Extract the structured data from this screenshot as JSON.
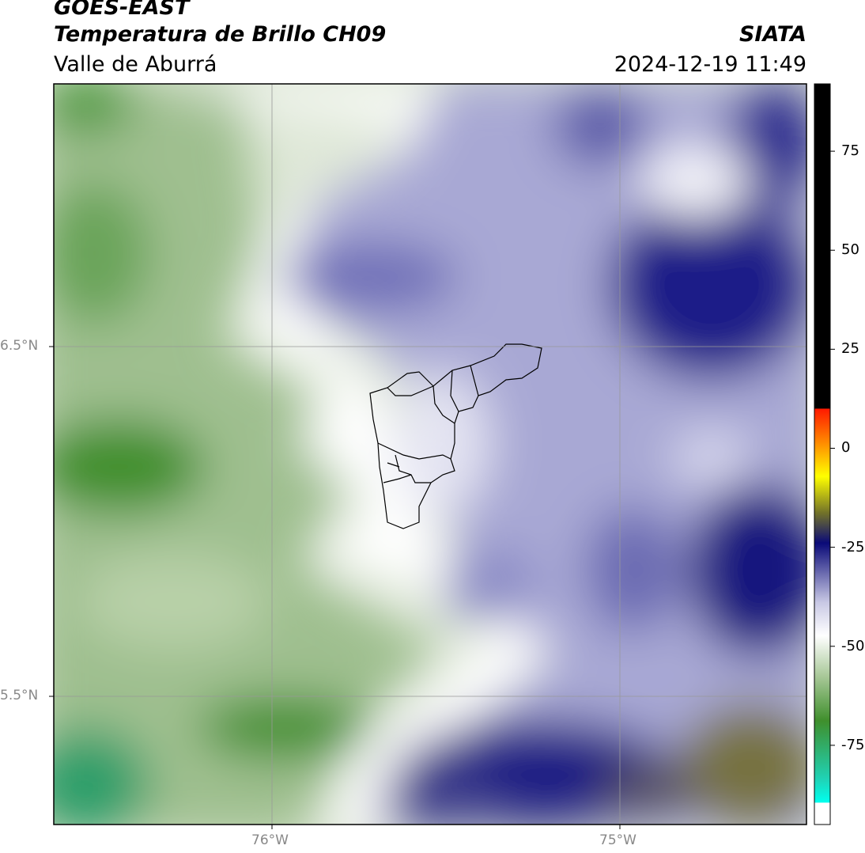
{
  "header": {
    "satellite": "GOES-EAST",
    "product": "Temperatura de Brillo CH09",
    "region": "Valle de Aburrá",
    "brand": "SIATA",
    "datetime": "2024-12-19 11:49"
  },
  "map": {
    "lat_labels": [
      "6.5°N",
      "5.5°N"
    ],
    "lon_labels": [
      "76°W",
      "75°W"
    ],
    "lat_lines": [
      6.5,
      5.5
    ],
    "lon_lines": [
      -76,
      -75
    ],
    "extent": {
      "lon_min": -76.62,
      "lon_max": -74.46,
      "lat_min": 5.13,
      "lat_max": 7.25
    }
  },
  "colorbar": {
    "ticks": [
      75,
      50,
      25,
      0,
      -25,
      -50,
      -75
    ],
    "tick_labels": [
      "75",
      "50",
      "25",
      "0",
      "-25",
      "-50",
      "-75"
    ],
    "range": [
      -95,
      92
    ],
    "colors": {
      "black": "#000000",
      "red": "#ff1a00",
      "orange": "#ff8000",
      "yellow": "#ffff00",
      "olive": "#70702a",
      "navy": "#0a0a78",
      "lavender": "#c8c8e4",
      "white": "#ffffff",
      "green": "#3f8f2c",
      "teal": "#1fd4b8",
      "cyan": "#00ffee"
    }
  }
}
